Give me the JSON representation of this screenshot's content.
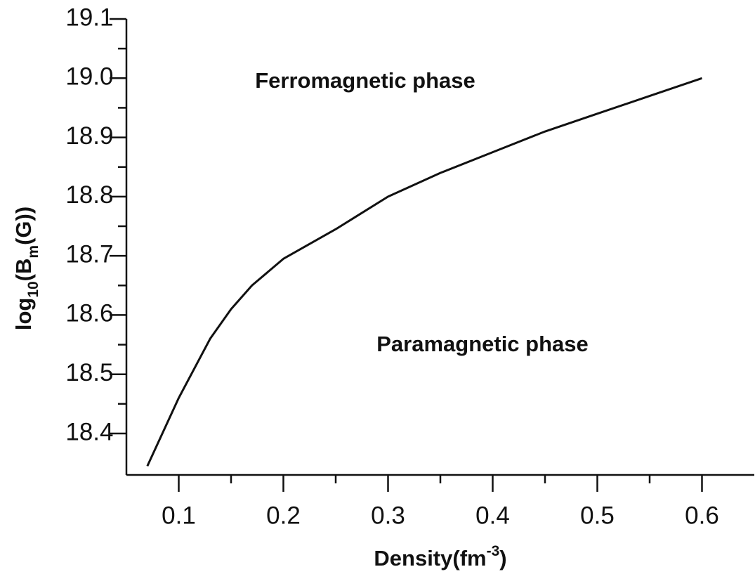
{
  "chart_data": {
    "type": "line",
    "x_label": [
      "Density(fm",
      "-3",
      ")"
    ],
    "y_label": [
      "log",
      "10",
      "(B",
      "m",
      "(G))"
    ],
    "annotations": [
      "Ferromagnetic phase",
      "Paramagnetic phase"
    ],
    "x": [
      0.07,
      0.1,
      0.13,
      0.15,
      0.17,
      0.2,
      0.25,
      0.3,
      0.35,
      0.4,
      0.45,
      0.5,
      0.55,
      0.6
    ],
    "series": [
      {
        "color": "#111111",
        "values": [
          18.345,
          18.46,
          18.56,
          18.61,
          18.65,
          18.695,
          18.745,
          18.8,
          18.84,
          18.875,
          18.91,
          18.94,
          18.97,
          19.0
        ]
      }
    ],
    "xlim": [
      0.05,
      0.65
    ],
    "xticks": [
      0.1,
      0.2,
      0.3,
      0.4,
      0.5,
      0.6
    ],
    "ylim": [
      18.33,
      19.1
    ],
    "yticks": [
      18.4,
      18.5,
      18.6,
      18.7,
      18.8,
      18.9,
      {
        "value": 19,
        "label": "19.0"
      },
      19.1
    ]
  }
}
